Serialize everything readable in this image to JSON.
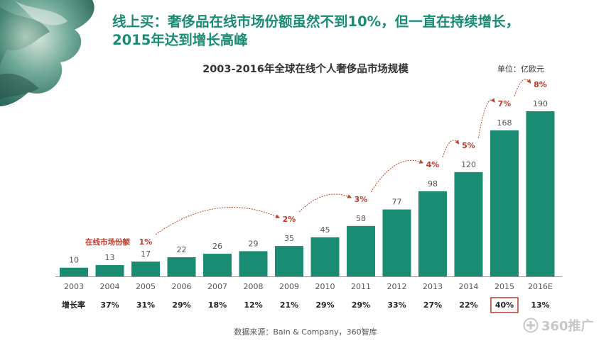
{
  "headline": {
    "line1": "线上买：奢侈品在线市场份额虽然不到10%，但一直在持续增长，",
    "line2": "2015年达到增长高峰"
  },
  "chart_data": {
    "type": "bar",
    "title": "2003-2016年全球在线个人奢侈品市场规模",
    "unit": "单位：亿欧元",
    "categories": [
      "2003",
      "2004",
      "2005",
      "2006",
      "2007",
      "2008",
      "2009",
      "2010",
      "2011",
      "2012",
      "2013",
      "2014",
      "2015",
      "2016E"
    ],
    "values": [
      10,
      13,
      17,
      22,
      26,
      29,
      35,
      45,
      58,
      77,
      98,
      120,
      168,
      190
    ],
    "growth_label": "增长率",
    "growth": [
      "",
      "37%",
      "31%",
      "29%",
      "18%",
      "12%",
      "21%",
      "29%",
      "29%",
      "33%",
      "27%",
      "22%",
      "40%",
      "13%"
    ],
    "highlight_growth": "2015",
    "share_label": "在线市场份额",
    "share": [
      {
        "value": "1%",
        "year": "2005"
      },
      {
        "value": "2%",
        "year": "2009"
      },
      {
        "value": "3%",
        "year": "2011"
      },
      {
        "value": "4%",
        "year": "2013"
      },
      {
        "value": "5%",
        "year": "2014"
      },
      {
        "value": "7%",
        "year": "2015"
      },
      {
        "value": "8%",
        "year": "2016E"
      }
    ],
    "bar_color": "#1a8c74",
    "share_color": "#c0392b",
    "arrow_color": "#b5462c"
  },
  "source": "数据来源：Bain & Company，360智库",
  "watermark": "360推广"
}
